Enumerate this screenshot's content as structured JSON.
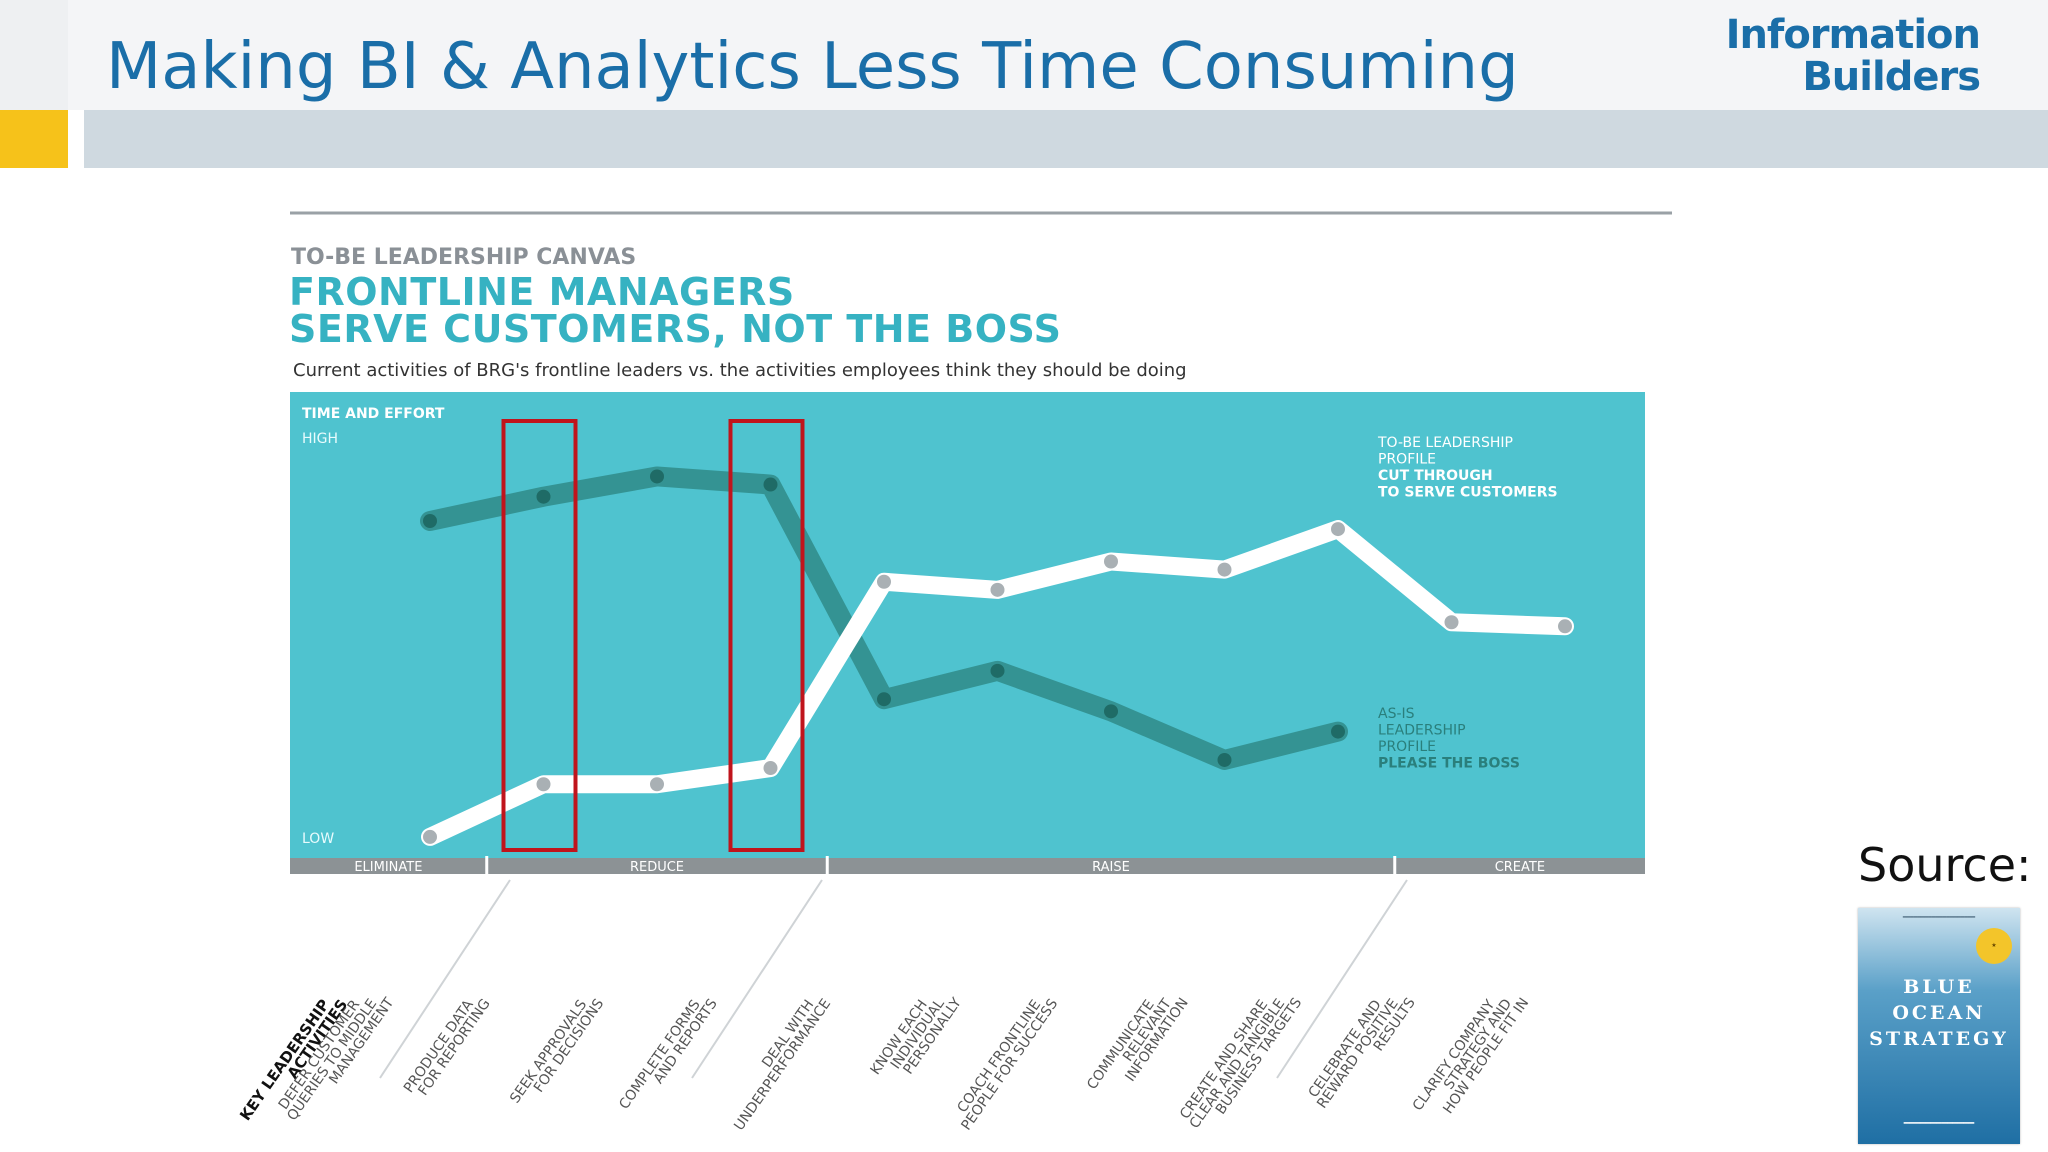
{
  "slide": {
    "title": "Making BI & Analytics Less Time Consuming",
    "logo": {
      "line1": "Information",
      "line2": "Builders"
    },
    "source_label": "Source:"
  },
  "book": {
    "title_lines": [
      "BLUE",
      "OCEAN",
      "STRATEGY"
    ]
  },
  "colors": {
    "title_blue": "#1a6ea8",
    "canvas_teal": "#4fc3cf",
    "heading_teal": "#36b2c2",
    "as_is_line": "#2f8b88",
    "to_be_line": "#ffffff",
    "highlight_box": "#c0141c",
    "yellow_accent": "#f6c21a",
    "header_bar_gray": "#cfd9e0"
  },
  "chart_data": {
    "type": "line",
    "supertitle": "TO-BE LEADERSHIP CANVAS",
    "title_lines": [
      "FRONTLINE MANAGERS",
      "SERVE CUSTOMERS, NOT THE BOSS"
    ],
    "subtitle": "Current activities of BRG's frontline leaders vs. the activities employees think they should be doing",
    "ylabel": "TIME AND EFFORT",
    "y_high_label": "HIGH",
    "y_low_label": "LOW",
    "ylim": [
      0,
      10
    ],
    "x_axis_title_lines": [
      "KEY LEADERSHIP",
      "ACTIVITIES"
    ],
    "categories": [
      [
        "DEFER CUSTOMER",
        "QUERIES TO MIDDLE",
        "MANAGEMENT"
      ],
      [
        "PRODUCE DATA",
        "FOR REPORTING"
      ],
      [
        "SEEK APPROVALS",
        "FOR DECISIONS"
      ],
      [
        "COMPLETE FORMS",
        "AND REPORTS"
      ],
      [
        "DEAL WITH",
        "UNDERPERFORMANCE"
      ],
      [
        "KNOW EACH",
        "INDIVIDUAL",
        "PERSONALLY"
      ],
      [
        "COACH FRONTLINE",
        "PEOPLE FOR SUCCESS"
      ],
      [
        "COMMUNICATE",
        "RELEVANT",
        "INFORMATION"
      ],
      [
        "CREATE AND SHARE",
        "CLEAR AND TANGIBLE",
        "BUSINESS TARGETS"
      ],
      [
        "CELEBRATE AND",
        "REWARD POSITIVE",
        "RESULTS"
      ],
      [
        "CLARIFY COMPANY",
        "STRATEGY AND",
        "HOW PEOPLE FIT IN"
      ]
    ],
    "groups": [
      {
        "label": "ELIMINATE",
        "from": 0,
        "to": 0
      },
      {
        "label": "REDUCE",
        "from": 1,
        "to": 3
      },
      {
        "label": "RAISE",
        "from": 4,
        "to": 8
      },
      {
        "label": "CREATE",
        "from": 9,
        "to": 10
      }
    ],
    "series": [
      {
        "id": "as-is",
        "label_lines": [
          "AS-IS",
          "LEADERSHIP",
          "PROFILE",
          "PLEASE THE BOSS"
        ],
        "values": [
          8.0,
          8.6,
          9.1,
          8.9,
          3.6,
          4.3,
          3.3,
          2.1,
          2.8,
          null,
          null
        ]
      },
      {
        "id": "to-be",
        "label_lines": [
          "TO-BE LEADERSHIP",
          "PROFILE",
          "CUT THROUGH",
          "TO SERVE CUSTOMERS"
        ],
        "values": [
          0.2,
          1.5,
          1.5,
          1.9,
          6.5,
          6.3,
          7.0,
          6.8,
          7.8,
          5.5,
          5.4
        ]
      }
    ],
    "highlighted_categories": [
      1,
      3
    ],
    "grid": false,
    "legend": "inline labels, right side"
  }
}
